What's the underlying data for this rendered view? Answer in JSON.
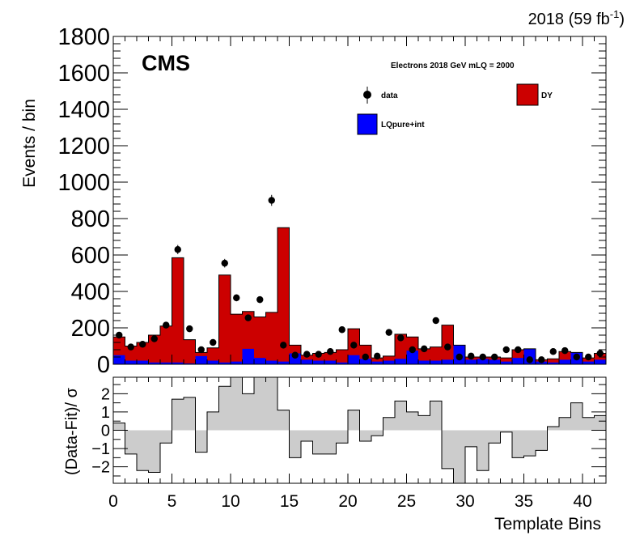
{
  "header": {
    "lumi": "2018 (59 fb",
    "lumi_sup": "-1",
    "lumi_close": ")",
    "cms": "CMS",
    "subtitle": "Electrons 2018  GeV mLQ = 2000"
  },
  "chart_data": {
    "type": "bar",
    "stacked": true,
    "xlabel": "Template Bins",
    "ylabel": "Events / bin",
    "xlim": [
      0,
      42
    ],
    "ylim": [
      0,
      1800
    ],
    "x_ticks": [
      0,
      5,
      10,
      15,
      20,
      25,
      30,
      35,
      40
    ],
    "y_ticks": [
      0,
      200,
      400,
      600,
      800,
      1000,
      1200,
      1400,
      1600,
      1800
    ],
    "legend": {
      "placement": "top-right",
      "data_label": "data",
      "dy_label": "DY",
      "lq_label": "LQpure+int"
    },
    "colors": {
      "DY": "#cc0000",
      "LQpure+int": "#0000ff",
      "ratio_fill": "#cccccc"
    },
    "series": [
      {
        "name": "LQpure+int",
        "values": [
          50,
          20,
          20,
          10,
          10,
          10,
          5,
          45,
          20,
          10,
          15,
          85,
          35,
          20,
          15,
          60,
          25,
          20,
          20,
          10,
          50,
          30,
          15,
          20,
          30,
          75,
          20,
          20,
          25,
          105,
          25,
          30,
          25,
          15,
          35,
          85,
          15,
          10,
          25,
          65,
          15,
          25
        ]
      },
      {
        "name": "DY",
        "values": [
          100,
          80,
          100,
          150,
          200,
          575,
          130,
          20,
          70,
          480,
          260,
          205,
          225,
          265,
          735,
          45,
          25,
          40,
          45,
          70,
          145,
          75,
          20,
          25,
          135,
          75,
          65,
          75,
          190,
          0,
          15,
          10,
          15,
          20,
          45,
          0,
          10,
          20,
          45,
          0,
          20,
          35
        ]
      },
      {
        "name": "data",
        "values": [
          160,
          95,
          110,
          140,
          215,
          630,
          195,
          80,
          120,
          555,
          365,
          255,
          355,
          900,
          105,
          50,
          55,
          55,
          70,
          190,
          105,
          40,
          45,
          175,
          145,
          80,
          85,
          240,
          95,
          40,
          45,
          40,
          40,
          80,
          80,
          25,
          25,
          70,
          75,
          40,
          40,
          60
        ]
      }
    ],
    "ratio": {
      "ylabel": "(Data-Fit)/ σ",
      "ylim": [
        -2.9,
        2.9
      ],
      "y_ticks": [
        -2,
        -1,
        0,
        1,
        2
      ],
      "values": [
        0.4,
        -1.3,
        -2.2,
        -2.3,
        -0.7,
        1.7,
        1.8,
        -1.2,
        1.0,
        2.4,
        3.5,
        2.0,
        2.9,
        3.5,
        1.1,
        -1.5,
        -0.6,
        -1.3,
        -1.3,
        -0.7,
        1.1,
        -0.6,
        -0.3,
        0.7,
        1.6,
        1.0,
        0.8,
        1.6,
        -2.1,
        -3.3,
        -0.9,
        -2.2,
        -0.7,
        -0.1,
        -1.5,
        -1.4,
        -1.1,
        0.2,
        0.7,
        1.5,
        0.7,
        0.8
      ]
    }
  }
}
